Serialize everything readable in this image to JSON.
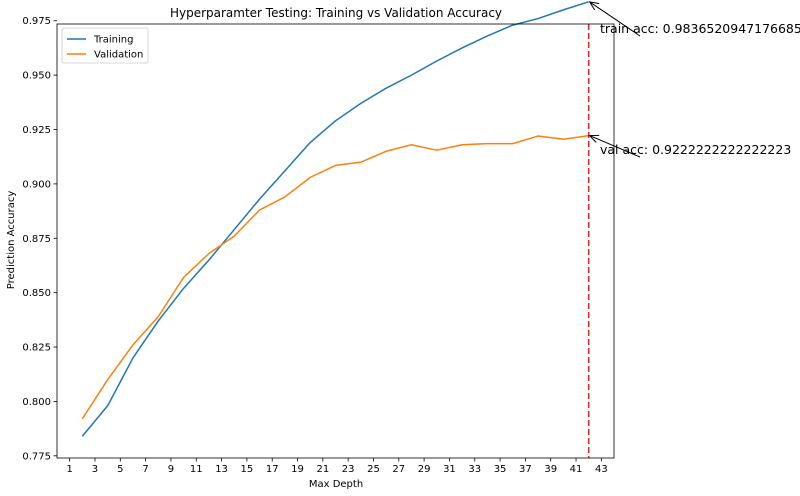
{
  "chart_data": {
    "type": "line",
    "title": "Hyperparamter Testing: Training vs Validation Accuracy",
    "xlabel": "Max Depth",
    "ylabel": "Prediction Accuracy",
    "xlim": [
      0,
      44
    ],
    "ylim": [
      0.774,
      0.9735
    ],
    "x_ticks": [
      1,
      3,
      5,
      7,
      9,
      11,
      13,
      15,
      17,
      19,
      21,
      23,
      25,
      27,
      29,
      31,
      33,
      35,
      37,
      39,
      41,
      43
    ],
    "y_ticks": [
      0.775,
      0.8,
      0.825,
      0.85,
      0.875,
      0.9,
      0.925,
      0.95,
      0.975
    ],
    "y_tick_labels": [
      "0.775",
      "0.800",
      "0.825",
      "0.850",
      "0.875",
      "0.900",
      "0.925",
      "0.950",
      "0.975"
    ],
    "x": [
      2,
      4,
      6,
      8,
      10,
      12,
      14,
      16,
      18,
      20,
      22,
      24,
      26,
      28,
      30,
      32,
      34,
      36,
      38,
      40,
      42
    ],
    "series": [
      {
        "name": "Training",
        "color": "#1f77b4",
        "values": [
          0.784,
          0.798,
          0.82,
          0.837,
          0.852,
          0.865,
          0.879,
          0.893,
          0.906,
          0.919,
          0.929,
          0.937,
          0.944,
          0.95,
          0.9565,
          0.9625,
          0.968,
          0.973,
          0.976,
          0.98,
          0.9837
        ]
      },
      {
        "name": "Validation",
        "color": "#ff7f0e",
        "values": [
          0.792,
          0.81,
          0.826,
          0.839,
          0.857,
          0.868,
          0.876,
          0.888,
          0.894,
          0.903,
          0.9085,
          0.91,
          0.915,
          0.918,
          0.9155,
          0.918,
          0.9185,
          0.9185,
          0.922,
          0.9205,
          0.9222
        ]
      }
    ],
    "vline": {
      "x": 42,
      "color": "#d62728",
      "style": "dashed"
    },
    "annotations": [
      {
        "text": "train acc: 0.9836520947176685",
        "target_x": 42,
        "target_y": 0.98365
      },
      {
        "text": "val acc: 0.9222222222222223",
        "target_x": 42,
        "target_y": 0.92222
      }
    ],
    "legend": {
      "position": "top-left",
      "entries": [
        "Training",
        "Validation"
      ]
    },
    "grid": false
  }
}
